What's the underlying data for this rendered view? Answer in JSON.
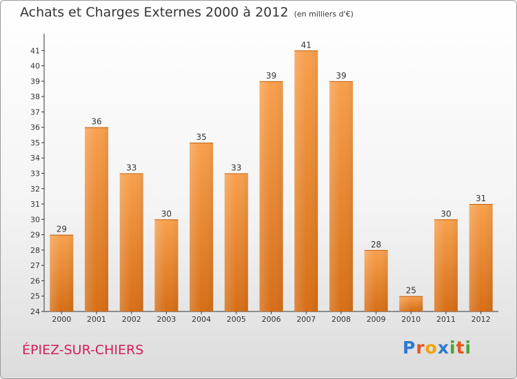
{
  "header": {
    "title": "Achats et Charges Externes 2000 à 2012",
    "subtitle": "(en milliers d'€)"
  },
  "footer": {
    "commune": "ÉPIEZ-SUR-CHIERS",
    "logo_letters": [
      "P",
      "r",
      "o",
      "x",
      "i",
      "t",
      "i"
    ],
    "logo_colors": [
      "#2b7bd0",
      "#e8551c",
      "#f2a20c",
      "#2b7bd0",
      "#45a832",
      "#e8551c",
      "#45a832"
    ]
  },
  "colors": {
    "bar_top": "#f7a04d",
    "bar_bottom": "#d66e16",
    "axis": "#333333",
    "commune": "#d0205a"
  },
  "chart_data": {
    "type": "bar",
    "title": "Achats et Charges Externes 2000 à 2012",
    "subtitle": "(en milliers d'€)",
    "categories": [
      "2000",
      "2001",
      "2002",
      "2003",
      "2004",
      "2005",
      "2006",
      "2007",
      "2008",
      "2009",
      "2010",
      "2011",
      "2012"
    ],
    "values": [
      29,
      36,
      33,
      30,
      35,
      33,
      39,
      41,
      39,
      28,
      25,
      30,
      31
    ],
    "ylim": [
      24,
      42
    ],
    "yticks": [
      24,
      25,
      26,
      27,
      28,
      29,
      30,
      31,
      32,
      33,
      34,
      35,
      36,
      37,
      38,
      39,
      40,
      41
    ],
    "xlabel": "",
    "ylabel": "",
    "grid": false,
    "legend": "none"
  }
}
